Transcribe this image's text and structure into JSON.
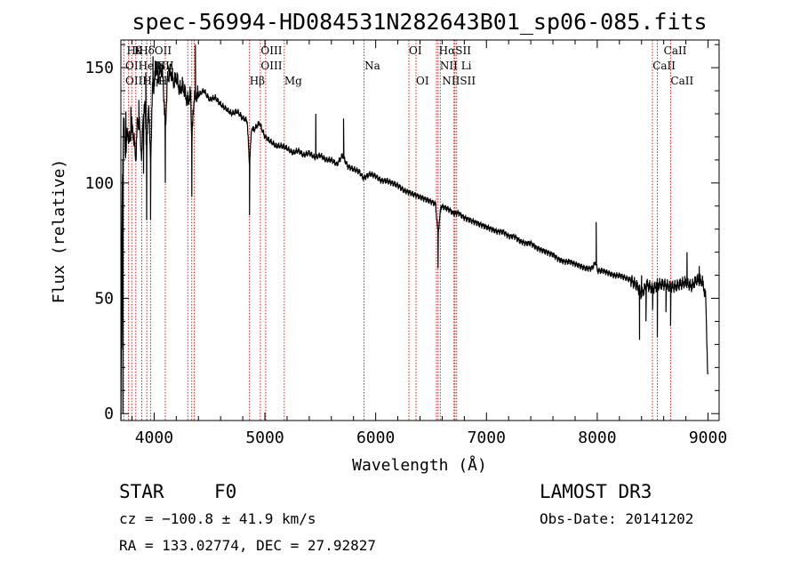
{
  "chart_data": {
    "type": "line",
    "title": "spec-56994-HD084531N282643B01_sp06-085.fits",
    "xlabel": "Wavelength (Å)",
    "ylabel": "Flux (relative)",
    "xlim": [
      3700,
      9100
    ],
    "ylim": [
      -3,
      162
    ],
    "xticks": [
      4000,
      5000,
      6000,
      7000,
      8000,
      9000
    ],
    "yticks": [
      0,
      50,
      100,
      150
    ],
    "series": [
      {
        "name": "spectrum",
        "anchors": [
          [
            3700,
            0
          ],
          [
            3712,
            95
          ],
          [
            3725,
            130
          ],
          [
            3740,
            112
          ],
          [
            3760,
            122
          ],
          [
            3780,
            118
          ],
          [
            3800,
            125
          ],
          [
            3820,
            118
          ],
          [
            3835,
            110
          ],
          [
            3850,
            128
          ],
          [
            3870,
            124
          ],
          [
            3889,
            110
          ],
          [
            3900,
            130
          ],
          [
            3920,
            132
          ],
          [
            3933,
            112
          ],
          [
            3950,
            136
          ],
          [
            3968,
            108
          ],
          [
            3985,
            140
          ],
          [
            4000,
            142
          ],
          [
            4020,
            150
          ],
          [
            4040,
            145
          ],
          [
            4060,
            150
          ],
          [
            4080,
            146
          ],
          [
            4101,
            122
          ],
          [
            4120,
            145
          ],
          [
            4150,
            148
          ],
          [
            4180,
            143
          ],
          [
            4200,
            146
          ],
          [
            4230,
            140
          ],
          [
            4260,
            142
          ],
          [
            4300,
            135
          ],
          [
            4330,
            138
          ],
          [
            4340,
            118
          ],
          [
            4360,
            137
          ],
          [
            4400,
            138
          ],
          [
            4450,
            140
          ],
          [
            4500,
            136
          ],
          [
            4550,
            137
          ],
          [
            4600,
            134
          ],
          [
            4650,
            132
          ],
          [
            4700,
            130
          ],
          [
            4750,
            131
          ],
          [
            4800,
            128
          ],
          [
            4840,
            127
          ],
          [
            4861,
            108
          ],
          [
            4880,
            124
          ],
          [
            4900,
            123
          ],
          [
            4950,
            126
          ],
          [
            5000,
            120
          ],
          [
            5050,
            118
          ],
          [
            5100,
            116
          ],
          [
            5150,
            116
          ],
          [
            5200,
            115
          ],
          [
            5250,
            113
          ],
          [
            5300,
            114
          ],
          [
            5350,
            112
          ],
          [
            5400,
            113
          ],
          [
            5450,
            111
          ],
          [
            5500,
            112
          ],
          [
            5550,
            110
          ],
          [
            5600,
            110
          ],
          [
            5650,
            108
          ],
          [
            5700,
            112
          ],
          [
            5750,
            107
          ],
          [
            5800,
            106
          ],
          [
            5850,
            105
          ],
          [
            5890,
            102
          ],
          [
            5950,
            104
          ],
          [
            6000,
            103
          ],
          [
            6050,
            101
          ],
          [
            6100,
            101
          ],
          [
            6150,
            100
          ],
          [
            6200,
            99
          ],
          [
            6250,
            97
          ],
          [
            6300,
            96
          ],
          [
            6350,
            95
          ],
          [
            6400,
            94
          ],
          [
            6450,
            93
          ],
          [
            6500,
            92
          ],
          [
            6540,
            91
          ],
          [
            6563,
            78
          ],
          [
            6590,
            90
          ],
          [
            6650,
            89
          ],
          [
            6700,
            87
          ],
          [
            6750,
            87
          ],
          [
            6800,
            85
          ],
          [
            6850,
            84
          ],
          [
            6900,
            83
          ],
          [
            6950,
            82
          ],
          [
            7000,
            81
          ],
          [
            7050,
            80
          ],
          [
            7100,
            79
          ],
          [
            7150,
            79
          ],
          [
            7200,
            77
          ],
          [
            7250,
            77
          ],
          [
            7300,
            75
          ],
          [
            7350,
            74
          ],
          [
            7400,
            74
          ],
          [
            7450,
            72
          ],
          [
            7500,
            71
          ],
          [
            7550,
            70
          ],
          [
            7600,
            69
          ],
          [
            7650,
            67
          ],
          [
            7700,
            66
          ],
          [
            7750,
            66
          ],
          [
            7800,
            65
          ],
          [
            7850,
            64
          ],
          [
            7900,
            63
          ],
          [
            7950,
            63
          ],
          [
            7990,
            66
          ],
          [
            8000,
            62
          ],
          [
            8050,
            62
          ],
          [
            8100,
            61
          ],
          [
            8150,
            60
          ],
          [
            8200,
            60
          ],
          [
            8250,
            59
          ],
          [
            8300,
            58
          ],
          [
            8350,
            56
          ],
          [
            8400,
            52
          ],
          [
            8450,
            56
          ],
          [
            8500,
            54
          ],
          [
            8550,
            56
          ],
          [
            8600,
            56
          ],
          [
            8650,
            55
          ],
          [
            8700,
            55
          ],
          [
            8750,
            56
          ],
          [
            8800,
            57
          ],
          [
            8850,
            55
          ],
          [
            8900,
            58
          ],
          [
            8950,
            57
          ],
          [
            8980,
            50
          ],
          [
            9000,
            10
          ]
        ],
        "spikes": [
          [
            3715,
            28
          ],
          [
            3718,
            0
          ],
          [
            3745,
            131
          ],
          [
            3790,
            133
          ],
          [
            3862,
            136
          ],
          [
            3905,
            104
          ],
          [
            3925,
            148
          ],
          [
            3933,
            84
          ],
          [
            3968,
            84
          ],
          [
            3990,
            155
          ],
          [
            4010,
            153
          ],
          [
            4046,
            150
          ],
          [
            4070,
            152
          ],
          [
            4101,
            100
          ],
          [
            4340,
            94
          ],
          [
            4372,
            160
          ],
          [
            4861,
            86
          ],
          [
            5460,
            130
          ],
          [
            5710,
            128
          ],
          [
            6563,
            63
          ],
          [
            7990,
            83
          ],
          [
            8382,
            32
          ],
          [
            8400,
            60
          ],
          [
            8440,
            40
          ],
          [
            8500,
            45
          ],
          [
            8542,
            33
          ],
          [
            8620,
            44
          ],
          [
            8662,
            38
          ],
          [
            8810,
            70
          ],
          [
            8920,
            64
          ]
        ]
      }
    ],
    "lines": [
      {
        "wave": 3726,
        "labels": [
          "OII"
        ]
      },
      {
        "wave": 3770,
        "labels": [
          "H8"
        ]
      },
      {
        "wave": 3798,
        "labels": [
          "Hη"
        ]
      },
      {
        "wave": 3835,
        "labels": [
          "Hη",
          "HeI"
        ]
      },
      {
        "wave": 3889,
        "labels": [
          "HeI"
        ]
      },
      {
        "wave": 3934,
        "labels": [
          "K",
          "SII"
        ]
      },
      {
        "wave": 3968,
        "labels": [
          "H"
        ]
      },
      {
        "wave": 4101,
        "labels": [
          "Hδ"
        ]
      },
      {
        "wave": 4304,
        "labels": [
          "G"
        ]
      },
      {
        "wave": 4340,
        "labels": [
          "Hγ"
        ]
      },
      {
        "wave": 4363,
        "labels": [
          "OIII"
        ]
      },
      {
        "wave": 4861,
        "labels": [
          "Hβ"
        ]
      },
      {
        "wave": 4959,
        "labels": [
          "OIII"
        ]
      },
      {
        "wave": 5007,
        "labels": [
          "OIII"
        ]
      },
      {
        "wave": 5175,
        "labels": [
          "Mg"
        ]
      },
      {
        "wave": 5894,
        "labels": [
          "Na"
        ]
      },
      {
        "wave": 6300,
        "labels": [
          "OI"
        ]
      },
      {
        "wave": 6364,
        "labels": [
          "OI"
        ]
      },
      {
        "wave": 6548,
        "labels": [
          "NII"
        ]
      },
      {
        "wave": 6563,
        "labels": [
          "Hα"
        ]
      },
      {
        "wave": 6583,
        "labels": [
          "NII"
        ]
      },
      {
        "wave": 6707,
        "labels": [
          "Li"
        ]
      },
      {
        "wave": 6716,
        "labels": [
          "SII"
        ]
      },
      {
        "wave": 6731,
        "labels": [
          "SII"
        ]
      },
      {
        "wave": 8498,
        "labels": [
          "CaII"
        ]
      },
      {
        "wave": 8542,
        "labels": [
          "CaII"
        ]
      },
      {
        "wave": 8662,
        "labels": [
          "CaII"
        ]
      }
    ],
    "line_label_rows": [
      [
        {
          "wave": 3752,
          "text": "Hθ"
        },
        {
          "wave": 3820,
          "text": "K"
        },
        {
          "wave": 3862,
          "text": "Hδ"
        },
        {
          "wave": 4003,
          "text": "OII"
        },
        {
          "wave": 4963,
          "text": "OIII"
        },
        {
          "wave": 6300,
          "text": "OI"
        },
        {
          "wave": 6570,
          "text": "HαSII"
        },
        {
          "wave": 8600,
          "text": "CaII"
        }
      ],
      [
        {
          "wave": 3740,
          "text": "OIHeISII"
        },
        {
          "wave": 4020,
          "text": "Hγ"
        },
        {
          "wave": 4963,
          "text": "OIII"
        },
        {
          "wave": 5900,
          "text": "Na"
        },
        {
          "wave": 6580,
          "text": "NII Li"
        },
        {
          "wave": 8500,
          "text": "CaII"
        }
      ],
      [
        {
          "wave": 3740,
          "text": "OIIHηH"
        },
        {
          "wave": 4020,
          "text": "G"
        },
        {
          "wave": 4861,
          "text": "Hβ"
        },
        {
          "wave": 5175,
          "text": "Mg"
        },
        {
          "wave": 6364,
          "text": "OI"
        },
        {
          "wave": 6600,
          "text": "NIISII"
        },
        {
          "wave": 8662,
          "text": "CaII"
        }
      ]
    ]
  },
  "info": {
    "object_type": "STAR",
    "subclass": "F0",
    "survey": "LAMOST DR3",
    "cz": "cz = −100.8 ± 41.9 km/s",
    "obs_date": "Obs-Date: 20141202",
    "coords": "RA = 133.02774, DEC =  27.92827"
  },
  "colors": {
    "spectrum": "#000000",
    "line_markers": "#cc0000",
    "axes": "#000000"
  }
}
